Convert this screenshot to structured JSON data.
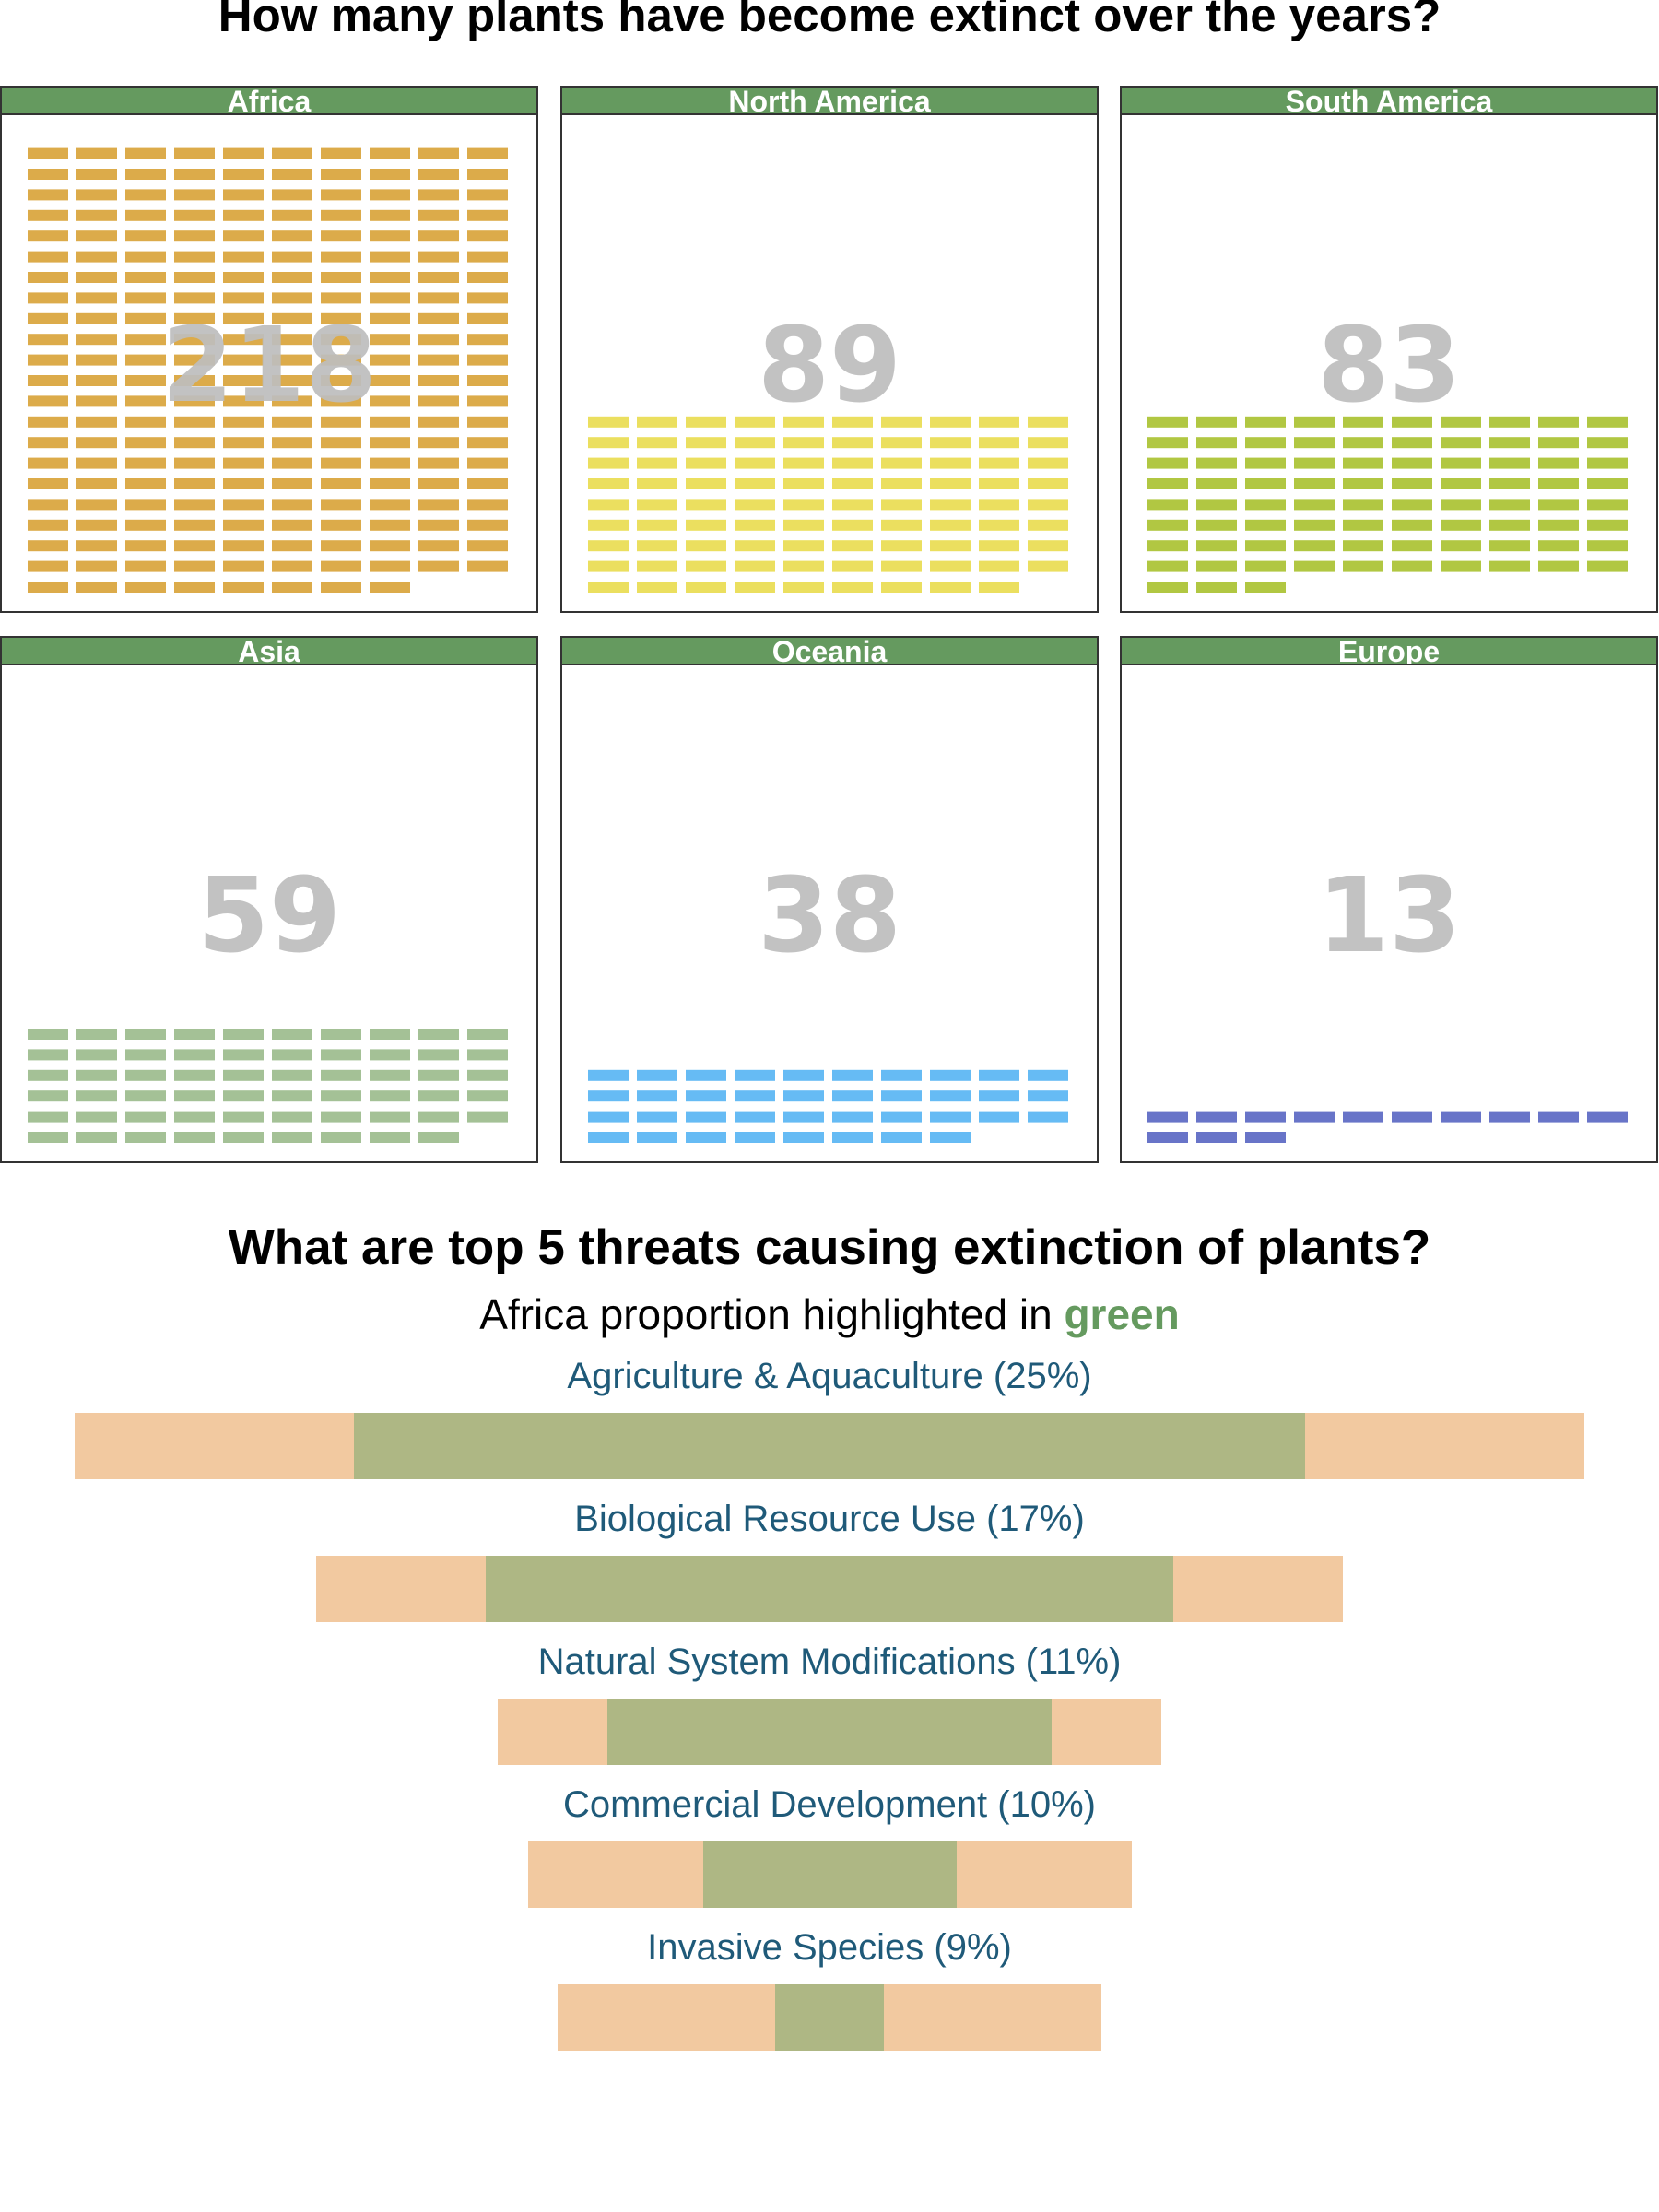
{
  "title": "How many plants have become extinct over the years?",
  "chart_data": [
    {
      "type": "waffle",
      "unit": "bar marks per panel",
      "categories": [
        "Africa",
        "North America",
        "South America",
        "Asia",
        "Oceania",
        "Europe"
      ],
      "values": [
        218,
        89,
        83,
        59,
        38,
        13
      ],
      "colors": [
        "#dcab4a",
        "#ebdf5f",
        "#b1c742",
        "#a4c196",
        "#66bbf4",
        "#6874c8"
      ],
      "value_label_color": "#bdbdbd",
      "header_color": "#659a5f"
    },
    {
      "type": "bar",
      "title": "What are top 5 threats causing extinction of plants?",
      "subtitle_prefix": "Africa proportion highlighted in ",
      "subtitle_highlight": "green",
      "highlight_color": "#aeb784",
      "bar_color": "#f2c9a0",
      "label_color": "#1f5a79",
      "categories": [
        "Agriculture & Aquaculture",
        "Biological Resource Use",
        "Natural System Modifications",
        "Commercial Development",
        "Invasive Species"
      ],
      "labels": [
        "Agriculture & Aquaculture (25%)",
        "Biological Resource Use (17%)",
        "Natural System Modifications (11%)",
        "Commercial Development (10%)",
        "Invasive Species (9%)"
      ],
      "values": [
        25,
        17,
        11,
        10,
        9
      ],
      "africa_share": [
        0.63,
        0.67,
        0.67,
        0.42,
        0.2
      ]
    }
  ]
}
